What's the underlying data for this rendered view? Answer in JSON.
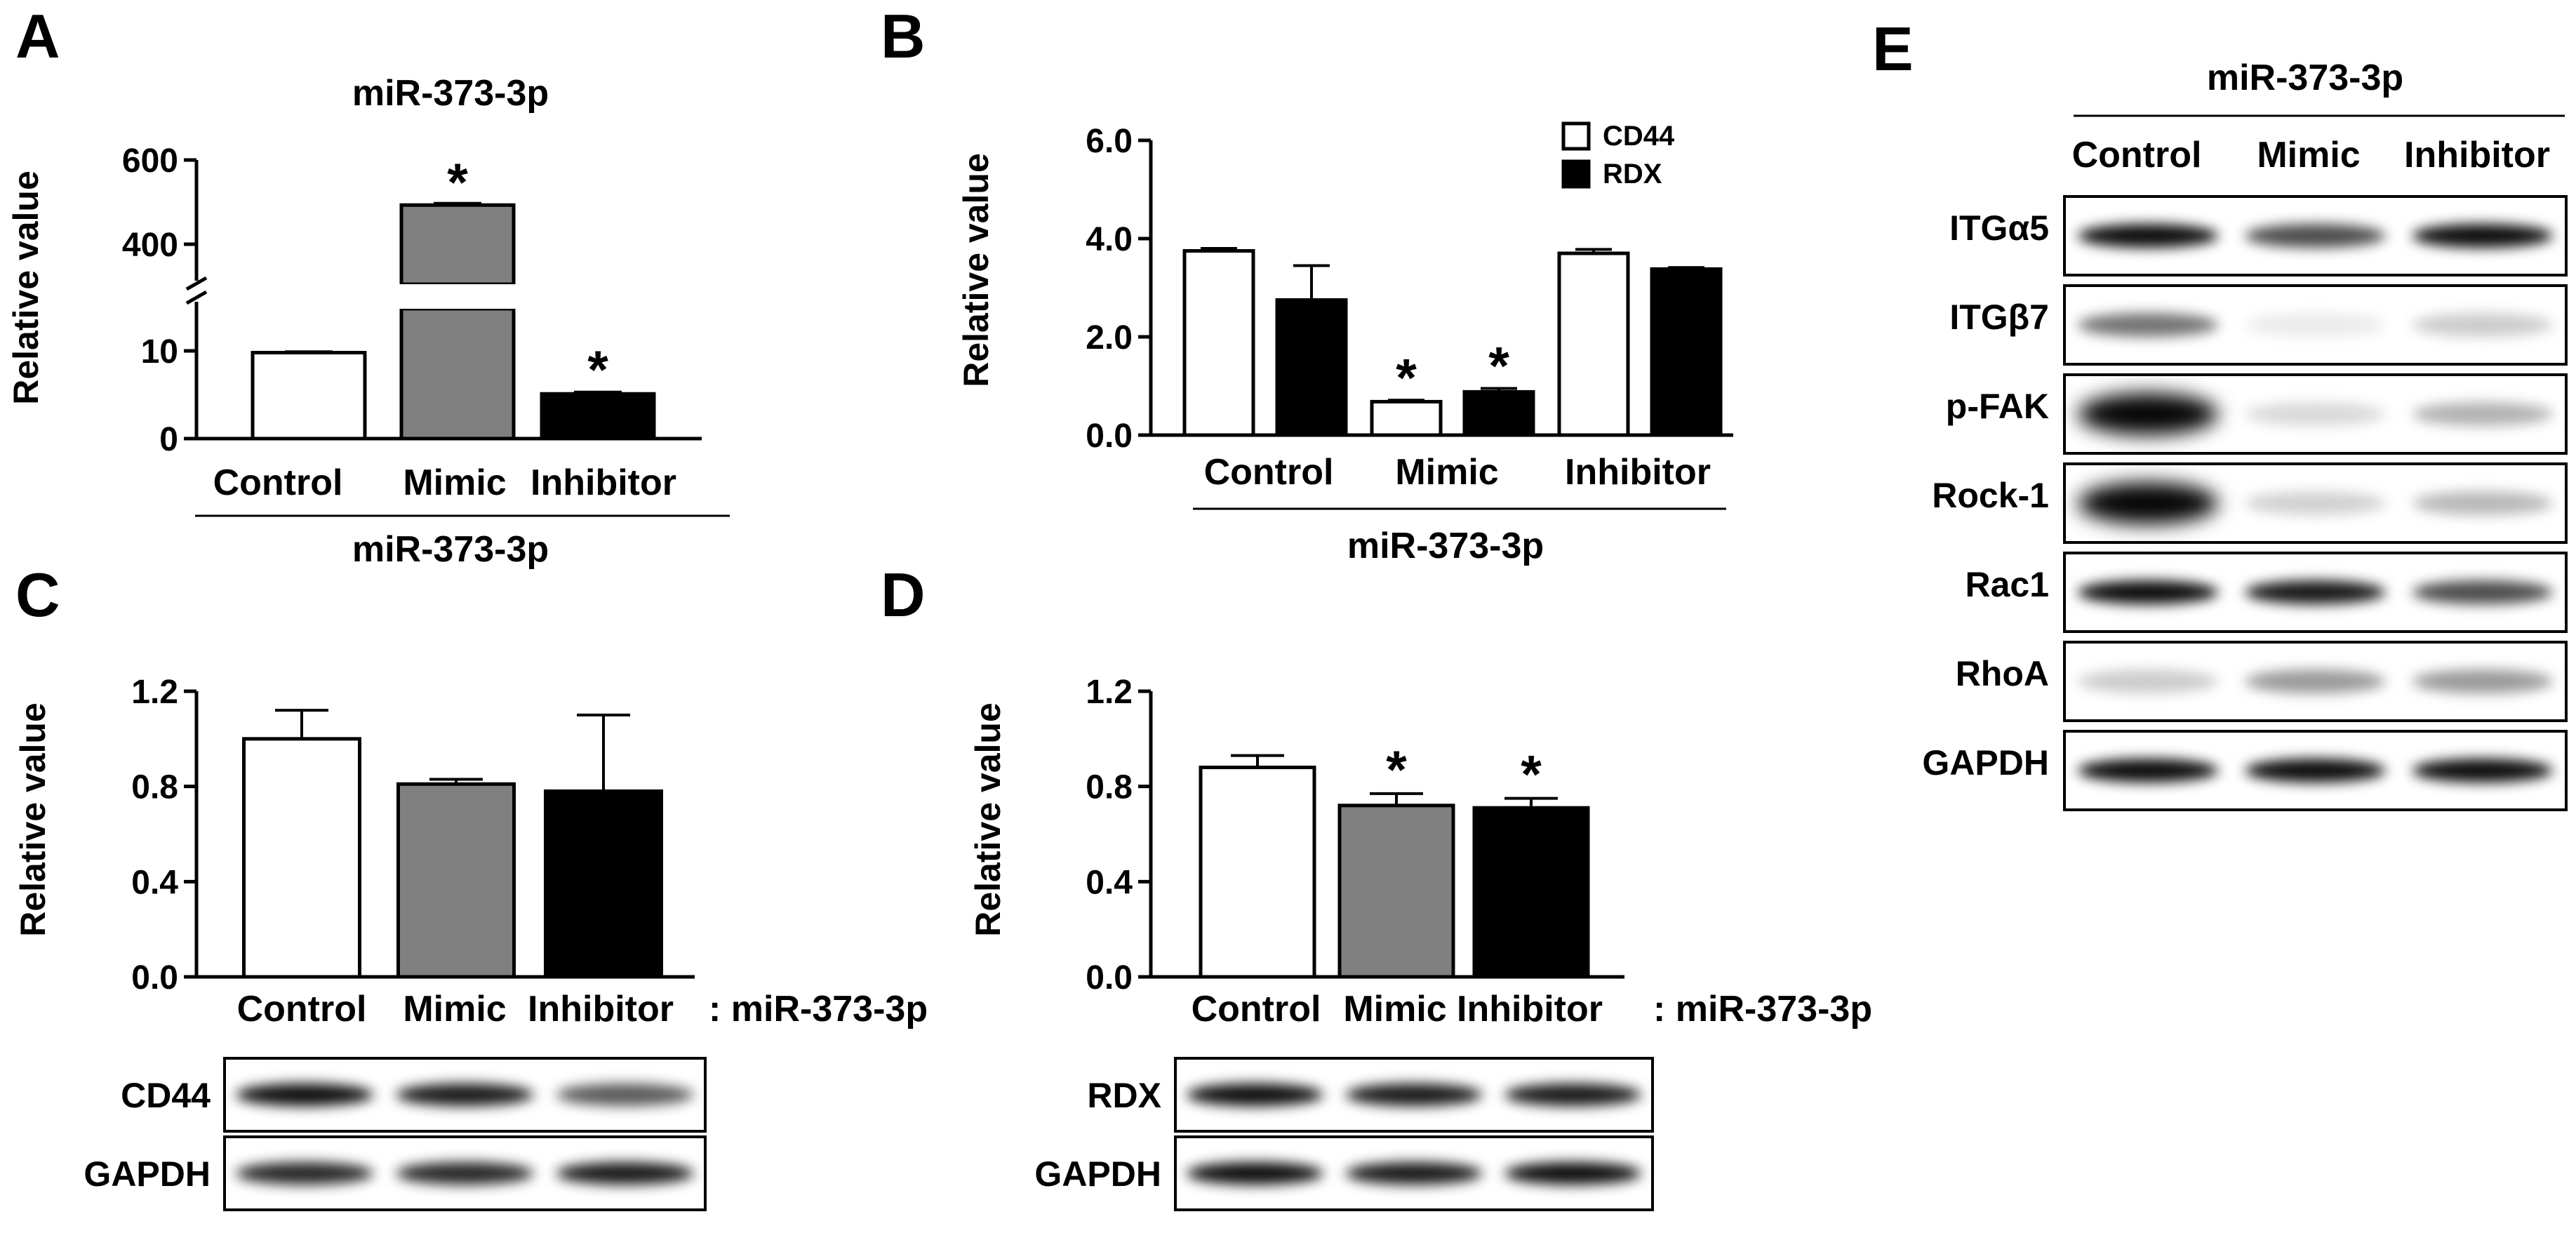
{
  "panels": {
    "A": "A",
    "B": "B",
    "C": "C",
    "D": "D",
    "E": "E"
  },
  "chart_data": [
    {
      "id": "A",
      "type": "bar",
      "title": "miR-373-3p",
      "xlabel": "miR-373-3p",
      "ylabel": "Relative value",
      "categories": [
        "Control",
        "Mimic",
        "Inhibitor"
      ],
      "values": [
        9.8,
        493,
        5.1
      ],
      "errors": [
        0.1,
        4,
        0.2
      ],
      "axis_break": true,
      "lower_ylim": [
        0,
        12
      ],
      "upper_ylim": [
        280,
        600
      ],
      "lower_ticks": [
        "0",
        "10"
      ],
      "upper_ticks": [
        "400",
        "600"
      ],
      "significant": [
        false,
        true,
        true
      ],
      "colors": [
        "#ffffff",
        "#808080",
        "#000000"
      ]
    },
    {
      "id": "B",
      "type": "bar",
      "xlabel": "miR-373-3p",
      "ylabel": "Relative value",
      "categories": [
        "Control",
        "Mimic",
        "Inhibitor"
      ],
      "series": [
        {
          "name": "CD44",
          "values": [
            3.75,
            0.68,
            3.7
          ],
          "errors": [
            0.05,
            0.03,
            0.08
          ],
          "significant": [
            false,
            true,
            false
          ],
          "color": "#ffffff"
        },
        {
          "name": "RDX",
          "values": [
            2.75,
            0.88,
            3.38
          ],
          "errors": [
            0.7,
            0.07,
            0.03
          ],
          "significant": [
            false,
            true,
            false
          ],
          "color": "#000000"
        }
      ],
      "ylim": [
        0,
        6
      ],
      "ticks": [
        "0.0",
        "2.0",
        "4.0",
        "6.0"
      ],
      "legend": "top-right"
    },
    {
      "id": "C",
      "type": "bar",
      "ylabel": "Relative value",
      "categories": [
        "Control",
        "Mimic",
        "Inhibitor"
      ],
      "values": [
        1.0,
        0.81,
        0.78
      ],
      "errors": [
        0.12,
        0.02,
        0.32
      ],
      "significant": [
        false,
        false,
        false
      ],
      "colors": [
        "#ffffff",
        "#808080",
        "#000000"
      ],
      "ylim": [
        0,
        1.2
      ],
      "ticks": [
        "0.0",
        "0.4",
        "0.8",
        "1.2"
      ],
      "suffix": ": miR-373-3p",
      "blots": [
        "CD44",
        "GAPDH"
      ]
    },
    {
      "id": "D",
      "type": "bar",
      "ylabel": "Relative value",
      "categories": [
        "Control",
        "Mimic",
        "Inhibitor"
      ],
      "values": [
        0.88,
        0.72,
        0.71
      ],
      "errors": [
        0.05,
        0.05,
        0.04
      ],
      "significant": [
        false,
        true,
        true
      ],
      "colors": [
        "#ffffff",
        "#808080",
        "#000000"
      ],
      "ylim": [
        0,
        1.2
      ],
      "ticks": [
        "0.0",
        "0.4",
        "0.8",
        "1.2"
      ],
      "suffix": ": miR-373-3p",
      "blots": [
        "RDX",
        "GAPDH"
      ]
    }
  ],
  "blot_E": {
    "title": "miR-373-3p",
    "lanes": [
      "Control",
      "Mimic",
      "Inhibitor"
    ],
    "rows": [
      "ITGα5",
      "ITGβ7",
      "p-FAK",
      "Rock-1",
      "Rac1",
      "RhoA",
      "GAPDH"
    ]
  },
  "significance_mark": "*"
}
